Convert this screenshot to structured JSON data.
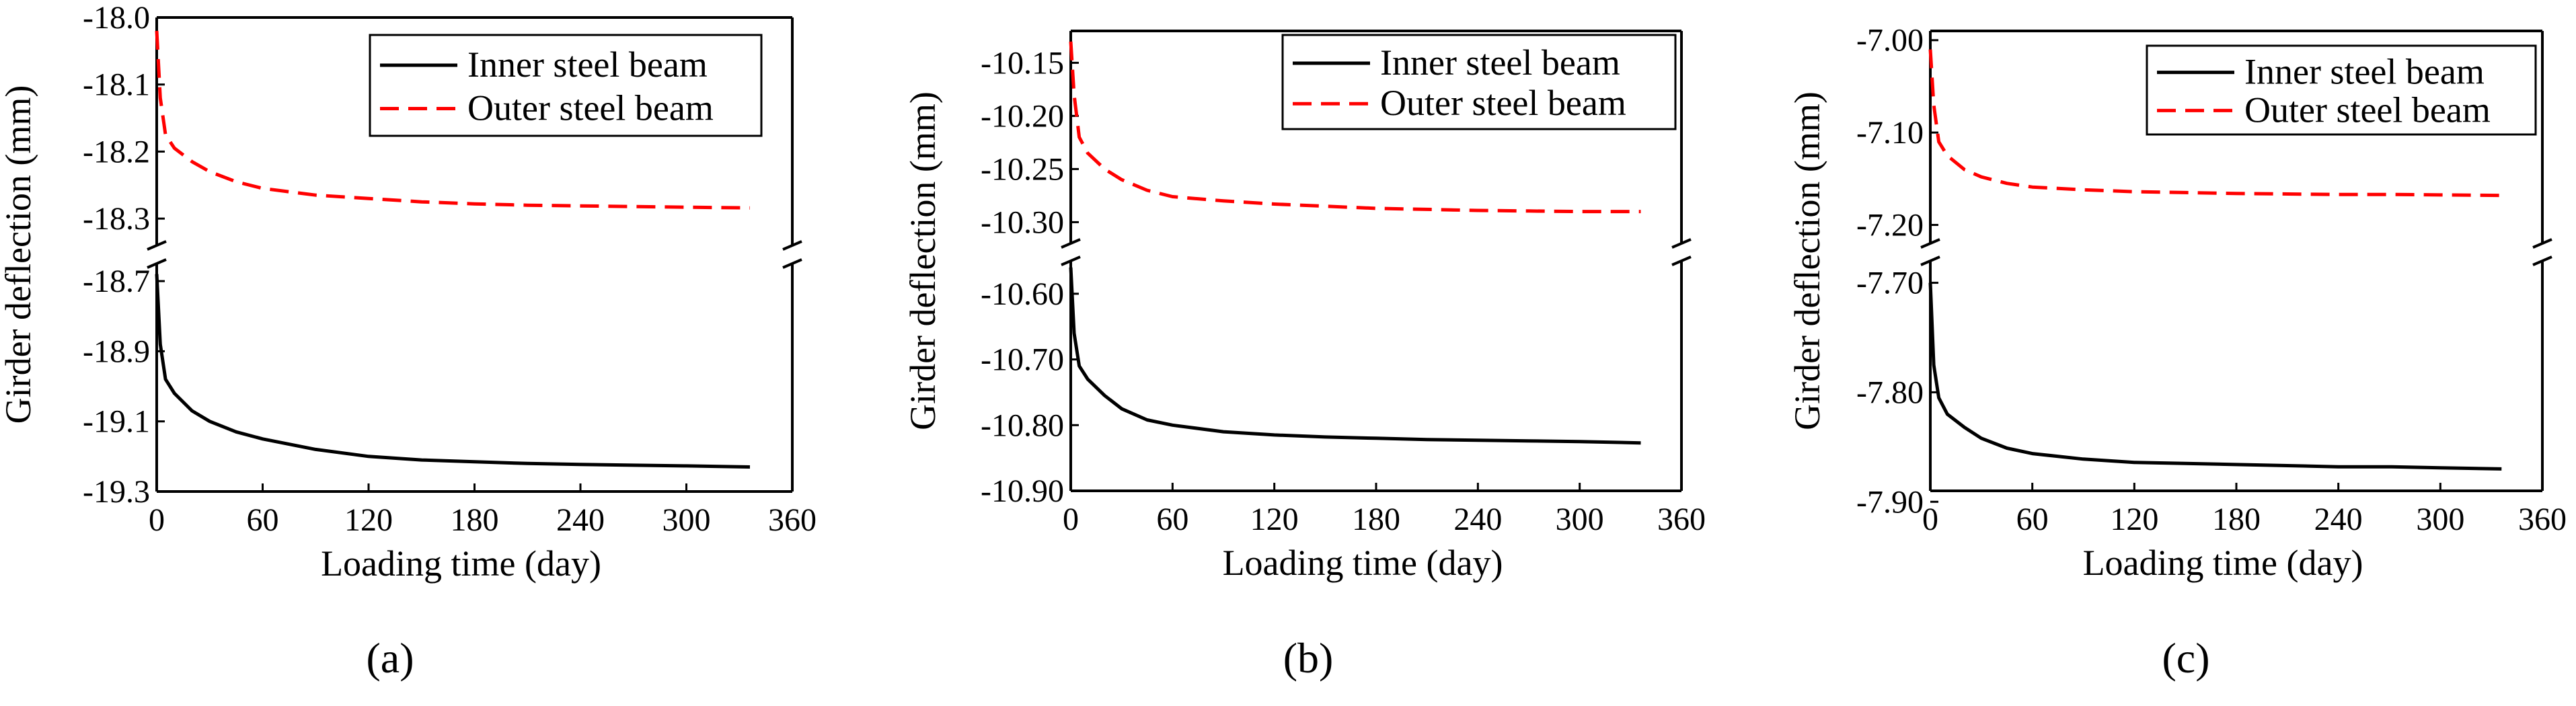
{
  "chart_data": [
    {
      "type": "line",
      "panel_label": "(a)",
      "xlabel": "Loading time (day)",
      "ylabel": "Girder deflection (mm)",
      "xlim": [
        0,
        360
      ],
      "xticks": [
        "0",
        "60",
        "120",
        "180",
        "240",
        "300",
        "360"
      ],
      "broken_axis": true,
      "upper_ylim": [
        -18.34,
        -18.0
      ],
      "upper_yticks": [
        "-18.0",
        "-18.1",
        "-18.2",
        "-18.3"
      ],
      "lower_ylim": [
        -19.3,
        -18.65
      ],
      "lower_yticks": [
        "-18.7",
        "-18.9",
        "-19.1",
        "-19.3"
      ],
      "legend_position": "top-right",
      "series": [
        {
          "name": "Inner steel beam",
          "color": "#000000",
          "dash": "solid",
          "axis": "lower",
          "x": [
            0,
            2,
            5,
            10,
            20,
            30,
            45,
            60,
            90,
            120,
            150,
            180,
            210,
            240,
            270,
            300,
            336
          ],
          "y": [
            -18.68,
            -18.88,
            -18.98,
            -19.02,
            -19.07,
            -19.1,
            -19.13,
            -19.15,
            -19.18,
            -19.2,
            -19.21,
            -19.215,
            -19.22,
            -19.223,
            -19.225,
            -19.227,
            -19.23
          ]
        },
        {
          "name": "Outer steel beam",
          "color": "#ff0000",
          "dash": "dashed",
          "axis": "upper",
          "x": [
            0,
            2,
            5,
            10,
            20,
            30,
            45,
            60,
            90,
            120,
            150,
            180,
            210,
            240,
            270,
            300,
            336
          ],
          "y": [
            -18.02,
            -18.12,
            -18.175,
            -18.195,
            -18.215,
            -18.23,
            -18.245,
            -18.255,
            -18.265,
            -18.27,
            -18.275,
            -18.278,
            -18.28,
            -18.281,
            -18.282,
            -18.283,
            -18.284
          ]
        }
      ]
    },
    {
      "type": "line",
      "panel_label": "(b)",
      "xlabel": "Loading time (day)",
      "ylabel": "Girder deflection (mm)",
      "xlim": [
        0,
        360
      ],
      "xticks": [
        "0",
        "60",
        "120",
        "180",
        "240",
        "300",
        "360"
      ],
      "broken_axis": true,
      "upper_ylim": [
        -10.32,
        -10.12
      ],
      "upper_yticks": [
        "-10.15",
        "-10.20",
        "-10.25",
        "-10.30"
      ],
      "lower_ylim": [
        -10.9,
        -10.55
      ],
      "lower_yticks": [
        "-10.60",
        "-10.70",
        "-10.80",
        "-10.90"
      ],
      "legend_position": "top-right",
      "series": [
        {
          "name": "Inner steel beam",
          "color": "#000000",
          "dash": "solid",
          "axis": "lower",
          "x": [
            0,
            2,
            5,
            10,
            20,
            30,
            45,
            60,
            90,
            120,
            150,
            180,
            210,
            240,
            270,
            300,
            336
          ],
          "y": [
            -10.56,
            -10.66,
            -10.71,
            -10.73,
            -10.755,
            -10.775,
            -10.792,
            -10.8,
            -10.81,
            -10.815,
            -10.818,
            -10.82,
            -10.822,
            -10.823,
            -10.824,
            -10.825,
            -10.827
          ]
        },
        {
          "name": "Outer steel beam",
          "color": "#ff0000",
          "dash": "dashed",
          "axis": "upper",
          "x": [
            0,
            2,
            5,
            10,
            20,
            30,
            45,
            60,
            90,
            120,
            150,
            180,
            210,
            240,
            270,
            300,
            336
          ],
          "y": [
            -10.13,
            -10.18,
            -10.22,
            -10.235,
            -10.25,
            -10.26,
            -10.27,
            -10.276,
            -10.28,
            -10.283,
            -10.285,
            -10.287,
            -10.288,
            -10.289,
            -10.2895,
            -10.29,
            -10.29
          ]
        }
      ]
    },
    {
      "type": "line",
      "panel_label": "(c)",
      "xlabel": "Loading time (day)",
      "ylabel": "Girder deflection (mm)",
      "xlim": [
        0,
        360
      ],
      "xticks": [
        "0",
        "60",
        "120",
        "180",
        "240",
        "300",
        "360"
      ],
      "broken_axis": true,
      "upper_ylim": [
        -7.22,
        -6.99
      ],
      "upper_yticks": [
        "-7.00",
        "-7.10",
        "-7.20"
      ],
      "lower_ylim": [
        -7.89,
        -7.68
      ],
      "lower_yticks": [
        "-7.70",
        "-7.80",
        "-7.90"
      ],
      "legend_position": "top-right",
      "series": [
        {
          "name": "Inner steel beam",
          "color": "#000000",
          "dash": "solid",
          "axis": "lower",
          "x": [
            0,
            2,
            5,
            10,
            20,
            30,
            45,
            60,
            90,
            120,
            150,
            180,
            210,
            240,
            270,
            300,
            336
          ],
          "y": [
            -7.7,
            -7.775,
            -7.805,
            -7.82,
            -7.832,
            -7.842,
            -7.851,
            -7.856,
            -7.861,
            -7.864,
            -7.865,
            -7.866,
            -7.867,
            -7.868,
            -7.868,
            -7.869,
            -7.87
          ]
        },
        {
          "name": "Outer steel beam",
          "color": "#ff0000",
          "dash": "dashed",
          "axis": "upper",
          "x": [
            0,
            2,
            5,
            10,
            20,
            30,
            45,
            60,
            90,
            120,
            150,
            180,
            210,
            240,
            270,
            300,
            336
          ],
          "y": [
            -7.01,
            -7.07,
            -7.11,
            -7.125,
            -7.14,
            -7.148,
            -7.155,
            -7.159,
            -7.162,
            -7.164,
            -7.165,
            -7.166,
            -7.1665,
            -7.167,
            -7.167,
            -7.1675,
            -7.168
          ]
        }
      ]
    }
  ]
}
